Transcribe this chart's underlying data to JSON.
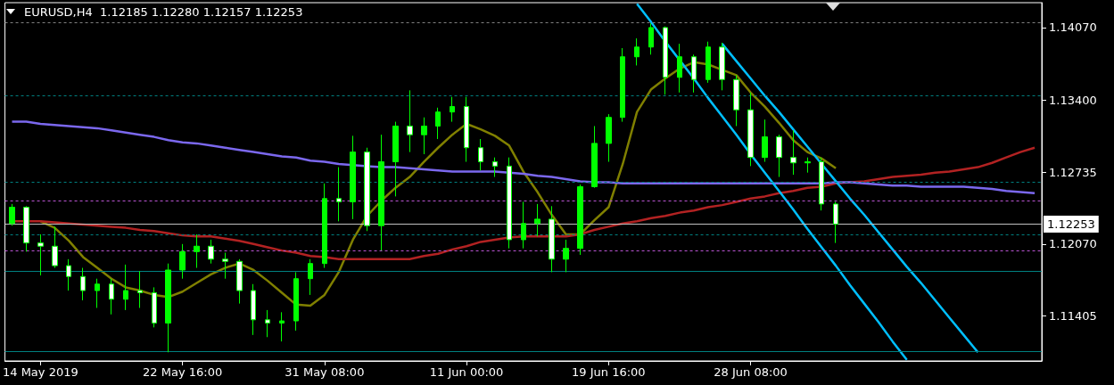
{
  "chart_data": {
    "type": "candlestick",
    "title": "EURUSD,H4  1.12185 1.12280 1.12157 1.12253",
    "color": "#00ff00",
    "categories": [
      null,
      null,
      "14 May 2019",
      null,
      null,
      null,
      null,
      null,
      null,
      null,
      null,
      null,
      "22 May 16:00",
      null,
      null,
      null,
      null,
      null,
      null,
      null,
      null,
      null,
      "31 May 08:00",
      null,
      null,
      null,
      null,
      null,
      null,
      null,
      null,
      null,
      "11 Jun 00:00",
      null,
      null,
      null,
      null,
      null,
      null,
      null,
      null,
      null,
      "19 Jun 16:00",
      null,
      null,
      null,
      null,
      null,
      null,
      null,
      null,
      null,
      "28 Jun 08:00",
      null,
      null,
      null,
      null,
      null,
      null,
      null,
      null,
      null,
      null,
      null,
      null,
      null,
      null,
      null,
      null,
      null,
      null,
      null,
      null
    ],
    "ohlc": [
      [
        1.1226,
        1.1244,
        1.1224,
        1.1241
      ],
      [
        1.1241,
        1.1242,
        1.12,
        1.1208
      ],
      [
        1.1208,
        1.1216,
        1.1178,
        1.1205
      ],
      [
        1.1205,
        1.1223,
        1.1185,
        1.1187
      ],
      [
        1.1187,
        1.1193,
        1.1164,
        1.1177
      ],
      [
        1.1177,
        1.1185,
        1.1155,
        1.1164
      ],
      [
        1.1164,
        1.1175,
        1.1148,
        1.117
      ],
      [
        1.117,
        1.1175,
        1.1142,
        1.1156
      ],
      [
        1.1156,
        1.1188,
        1.1146,
        1.1164
      ],
      [
        1.1164,
        1.1182,
        1.1148,
        1.1162
      ],
      [
        1.1162,
        1.1167,
        1.113,
        1.1134
      ],
      [
        1.1134,
        1.1189,
        1.1107,
        1.1183
      ],
      [
        1.1183,
        1.1207,
        1.1175,
        1.12
      ],
      [
        1.12,
        1.1216,
        1.1185,
        1.1205
      ],
      [
        1.1205,
        1.1211,
        1.1189,
        1.1193
      ],
      [
        1.1193,
        1.1199,
        1.1175,
        1.1191
      ],
      [
        1.1191,
        1.1193,
        1.1152,
        1.1164
      ],
      [
        1.1164,
        1.117,
        1.1123,
        1.1137
      ],
      [
        1.1137,
        1.1146,
        1.1121,
        1.1134
      ],
      [
        1.1134,
        1.1144,
        1.1117,
        1.1136
      ],
      [
        1.1136,
        1.1181,
        1.1127,
        1.1175
      ],
      [
        1.1175,
        1.1193,
        1.116,
        1.1189
      ],
      [
        1.1189,
        1.1263,
        1.1185,
        1.1249
      ],
      [
        1.1249,
        1.1278,
        1.1228,
        1.1246
      ],
      [
        1.1246,
        1.1307,
        1.123,
        1.1292
      ],
      [
        1.1292,
        1.1296,
        1.1219,
        1.1224
      ],
      [
        1.1224,
        1.1308,
        1.1201,
        1.1283
      ],
      [
        1.1283,
        1.132,
        1.1251,
        1.1316
      ],
      [
        1.1316,
        1.1349,
        1.1292,
        1.1308
      ],
      [
        1.1308,
        1.1324,
        1.129,
        1.1316
      ],
      [
        1.1316,
        1.1333,
        1.1304,
        1.1329
      ],
      [
        1.1329,
        1.1343,
        1.132,
        1.1334
      ],
      [
        1.1334,
        1.1343,
        1.1283,
        1.1296
      ],
      [
        1.1296,
        1.1304,
        1.1275,
        1.1283
      ],
      [
        1.1283,
        1.1287,
        1.1269,
        1.1279
      ],
      [
        1.1279,
        1.1287,
        1.1203,
        1.1211
      ],
      [
        1.1211,
        1.1246,
        1.1203,
        1.1226
      ],
      [
        1.1226,
        1.1244,
        1.1214,
        1.123
      ],
      [
        1.123,
        1.1242,
        1.1181,
        1.1193
      ],
      [
        1.1193,
        1.1211,
        1.1181,
        1.1203
      ],
      [
        1.1203,
        1.1262,
        1.1197,
        1.126
      ],
      [
        1.126,
        1.1316,
        1.1259,
        1.13
      ],
      [
        1.13,
        1.1327,
        1.1283,
        1.1324
      ],
      [
        1.1324,
        1.1388,
        1.132,
        1.138
      ],
      [
        1.138,
        1.1397,
        1.1372,
        1.1389
      ],
      [
        1.1389,
        1.1411,
        1.1382,
        1.1407
      ],
      [
        1.1407,
        1.1408,
        1.1345,
        1.1361
      ],
      [
        1.1361,
        1.1392,
        1.1347,
        1.138
      ],
      [
        1.138,
        1.1382,
        1.1347,
        1.1359
      ],
      [
        1.1359,
        1.1394,
        1.1356,
        1.1389
      ],
      [
        1.1389,
        1.1393,
        1.1349,
        1.1359
      ],
      [
        1.1359,
        1.1363,
        1.1316,
        1.1331
      ],
      [
        1.1331,
        1.1347,
        1.1279,
        1.1287
      ],
      [
        1.1287,
        1.1322,
        1.1283,
        1.1306
      ],
      [
        1.1306,
        1.1308,
        1.1269,
        1.1287
      ],
      [
        1.1287,
        1.1312,
        1.1271,
        1.1282
      ],
      [
        1.1282,
        1.1287,
        1.1273,
        1.1283
      ],
      [
        1.1283,
        1.1287,
        1.1238,
        1.1244
      ],
      [
        1.1244,
        1.1246,
        1.1208,
        1.12253
      ],
      null,
      null,
      null,
      null,
      null,
      null,
      null,
      null,
      null,
      null,
      null,
      null,
      null,
      null
    ],
    "series": [
      {
        "type": "line",
        "color": "#808000",
        "values": [
          null,
          null,
          1.1228,
          1.1222,
          1.121,
          1.1195,
          1.1185,
          1.1175,
          1.1167,
          1.1164,
          1.116,
          1.1158,
          1.1163,
          1.1171,
          1.1179,
          1.1185,
          1.1189,
          1.1183,
          1.1173,
          1.1162,
          1.1151,
          1.115,
          1.116,
          1.1181,
          1.1211,
          1.1233,
          1.1247,
          1.1259,
          1.1269,
          1.1283,
          1.1296,
          1.1308,
          1.1318,
          1.1313,
          1.1307,
          1.1298,
          1.1274,
          1.1255,
          1.1234,
          1.1216,
          1.1216,
          1.1229,
          1.1241,
          1.1281,
          1.1329,
          1.135,
          1.136,
          1.1369,
          1.1375,
          1.1373,
          1.1368,
          1.1363,
          1.1347,
          1.1334,
          1.1319,
          1.1303,
          1.1292,
          1.1286,
          1.1277,
          null,
          null,
          null,
          null,
          null,
          null,
          null,
          null,
          null,
          null,
          null,
          null,
          null,
          null
        ]
      },
      {
        "type": "line",
        "color": "#b22222",
        "values": [
          1.1228,
          1.1228,
          1.1228,
          1.1227,
          1.1226,
          1.1225,
          1.1224,
          1.1223,
          1.1222,
          1.122,
          1.1219,
          1.1217,
          1.1215,
          1.1214,
          1.1214,
          1.1212,
          1.121,
          1.1207,
          1.1204,
          1.1201,
          1.1199,
          1.1196,
          1.1195,
          1.1193,
          1.1193,
          1.1193,
          1.1193,
          1.1193,
          1.1193,
          1.1196,
          1.1198,
          1.1202,
          1.1205,
          1.1209,
          1.1211,
          1.1213,
          1.1214,
          1.1214,
          1.1214,
          1.1214,
          1.1216,
          1.122,
          1.1223,
          1.1226,
          1.1228,
          1.1231,
          1.1233,
          1.1236,
          1.1238,
          1.1241,
          1.1243,
          1.1246,
          1.1249,
          1.1251,
          1.1254,
          1.1256,
          1.1259,
          1.126,
          1.1263,
          1.1264,
          1.1265,
          1.1267,
          1.1269,
          1.127,
          1.1271,
          1.1273,
          1.1274,
          1.1276,
          1.1278,
          1.1282,
          1.1287,
          1.1292,
          1.1296
        ]
      },
      {
        "type": "line",
        "color": "#7b68ee",
        "values": [
          1.132,
          1.132,
          1.1318,
          1.1317,
          1.1316,
          1.1315,
          1.1314,
          1.1312,
          1.131,
          1.1308,
          1.1306,
          1.1303,
          1.1301,
          1.13,
          1.1298,
          1.1296,
          1.1294,
          1.1292,
          1.129,
          1.1288,
          1.1287,
          1.1284,
          1.1283,
          1.1281,
          1.128,
          1.1279,
          1.1278,
          1.1278,
          1.1277,
          1.1276,
          1.1275,
          1.1274,
          1.1274,
          1.1274,
          1.1274,
          1.1273,
          1.1272,
          1.127,
          1.1269,
          1.1267,
          1.1265,
          1.1264,
          1.1264,
          1.1263,
          1.1263,
          1.1263,
          1.1263,
          1.1263,
          1.1263,
          1.1263,
          1.1263,
          1.1263,
          1.1263,
          1.1263,
          1.1263,
          1.1263,
          1.1263,
          1.1263,
          1.1264,
          1.1264,
          1.1263,
          1.1262,
          1.1261,
          1.1261,
          1.126,
          1.126,
          1.126,
          1.126,
          1.1259,
          1.1258,
          1.1256,
          1.1255,
          1.1254
        ]
      },
      {
        "type": "line",
        "color": "#00bfff",
        "values": [
          null,
          null,
          null,
          null,
          null,
          null,
          null,
          null,
          null,
          null,
          null,
          null,
          null,
          null,
          null,
          null,
          null,
          null,
          null,
          null,
          null,
          null,
          null,
          null,
          null,
          null,
          null,
          null,
          null,
          null,
          null,
          null,
          null,
          null,
          null,
          null,
          null,
          null,
          null,
          null,
          null,
          null,
          null,
          null,
          1.1429,
          1.1412,
          1.1394,
          1.1377,
          1.136,
          1.1342,
          1.1325,
          1.1308,
          1.129,
          1.1273,
          1.1256,
          1.1239,
          1.1221,
          1.1204,
          1.1187,
          1.1169,
          1.1152,
          1.1135,
          1.1117,
          1.11,
          null,
          null,
          null,
          null,
          null,
          null,
          null,
          null,
          null
        ]
      },
      {
        "type": "line",
        "color": "#00bfff",
        "values": [
          null,
          null,
          null,
          null,
          null,
          null,
          null,
          null,
          null,
          null,
          null,
          null,
          null,
          null,
          null,
          null,
          null,
          null,
          null,
          null,
          null,
          null,
          null,
          null,
          null,
          null,
          null,
          null,
          null,
          null,
          null,
          null,
          null,
          null,
          null,
          null,
          null,
          null,
          null,
          null,
          null,
          null,
          null,
          null,
          null,
          null,
          null,
          null,
          null,
          null,
          1.1392,
          1.1376,
          1.136,
          1.1344,
          1.1329,
          1.1313,
          1.1297,
          1.1281,
          1.1265,
          1.1249,
          1.1234,
          1.1218,
          1.1202,
          1.1186,
          1.1171,
          1.1155,
          1.1139,
          1.1123,
          1.1107,
          null,
          null,
          null,
          null
        ]
      }
    ],
    "ylim": [
      1.1099,
      1.143
    ],
    "yticks": [
      {
        "value": 1.11405,
        "label": "1.11405"
      },
      {
        "value": 1.1207,
        "label": "1.12070"
      },
      {
        "value": 1.12735,
        "label": "1.12735"
      },
      {
        "value": 1.134,
        "label": "1.13400"
      },
      {
        "value": 1.1407,
        "label": "1.14070"
      }
    ],
    "ref_lines": [
      {
        "axis": "y",
        "value": 1.1412,
        "color": "#808080",
        "line_style": "dashed"
      },
      {
        "axis": "y",
        "value": 1.1344,
        "color": "#008080",
        "line_style": "dashed"
      },
      {
        "axis": "y",
        "value": 1.1264,
        "color": "#008080",
        "line_style": "dashed"
      },
      {
        "axis": "y",
        "value": 1.1247,
        "color": "#ba55d3",
        "line_style": "dashed"
      },
      {
        "axis": "y",
        "value": 1.12253,
        "label": "1.12253",
        "color": "#c0c0c0",
        "line_style": "solid"
      },
      {
        "axis": "y",
        "value": 1.1216,
        "color": "#008080",
        "line_style": "dashed"
      },
      {
        "axis": "y",
        "value": 1.1201,
        "color": "#ba55d3",
        "line_style": "dashed"
      },
      {
        "axis": "y",
        "value": 1.1182,
        "color": "#008080",
        "line_style": "solid"
      },
      {
        "axis": "y",
        "value": 1.1108,
        "color": "#008080",
        "line_style": "solid"
      }
    ]
  }
}
